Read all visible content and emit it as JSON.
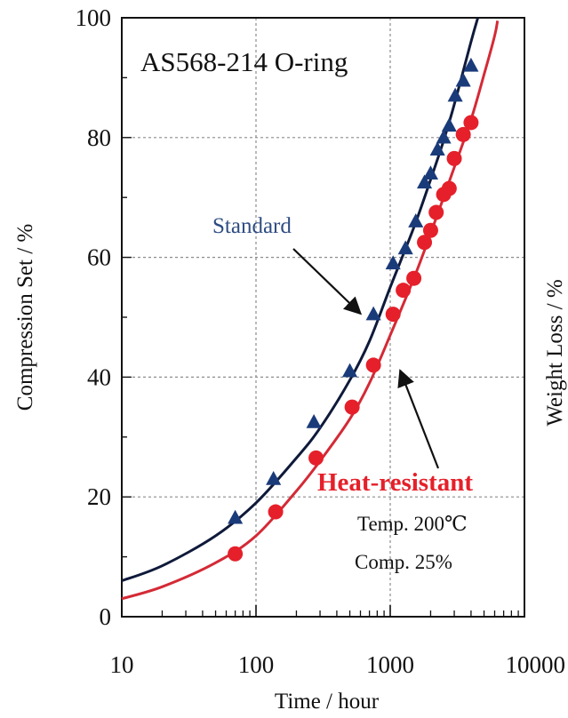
{
  "chart_data": {
    "type": "scatter",
    "title": "AS568-214 O-ring",
    "xlabel": "Time / hour",
    "ylabel": "Compression Set / %",
    "cropped_right_label": "Weight Loss / %",
    "xscale": "log",
    "xlim": [
      10,
      10000
    ],
    "ylim": [
      0,
      100
    ],
    "xticks": [
      10,
      100,
      1000,
      10000
    ],
    "xtick_labels": [
      "10",
      "100",
      "1000",
      "10000"
    ],
    "yticks": [
      0,
      20,
      40,
      60,
      80,
      100
    ],
    "ytick_labels": [
      "0",
      "20",
      "40",
      "60",
      "80",
      "100"
    ],
    "grid": true,
    "series": [
      {
        "name": "Standard",
        "marker": "triangle",
        "color": "#1a3b7a",
        "points": [
          [
            70,
            16.5
          ],
          [
            135,
            23
          ],
          [
            270,
            32.5
          ],
          [
            500,
            41
          ],
          [
            750,
            50.5
          ],
          [
            1050,
            59
          ],
          [
            1300,
            61.5
          ],
          [
            1550,
            66
          ],
          [
            1800,
            72.5
          ],
          [
            2000,
            74
          ],
          [
            2250,
            78
          ],
          [
            2500,
            80
          ],
          [
            2750,
            82
          ],
          [
            3050,
            87
          ],
          [
            3500,
            89.5
          ],
          [
            4000,
            92
          ]
        ],
        "curve": [
          [
            10,
            6
          ],
          [
            20,
            8.5
          ],
          [
            50,
            13.5
          ],
          [
            100,
            19
          ],
          [
            200,
            26.5
          ],
          [
            300,
            31.5
          ],
          [
            500,
            39.5
          ],
          [
            700,
            46
          ],
          [
            1000,
            55
          ],
          [
            1500,
            65
          ],
          [
            2000,
            73
          ],
          [
            2500,
            79.5
          ],
          [
            3000,
            85.5
          ],
          [
            4000,
            96
          ],
          [
            4500,
            100
          ]
        ],
        "curve_color": "#0f1a3a"
      },
      {
        "name": "Heat-resistant",
        "marker": "circle",
        "color": "#e5202a",
        "points": [
          [
            70,
            10.5
          ],
          [
            140,
            17.5
          ],
          [
            280,
            26.5
          ],
          [
            520,
            35
          ],
          [
            750,
            42
          ],
          [
            1050,
            50.5
          ],
          [
            1250,
            54.5
          ],
          [
            1500,
            56.5
          ],
          [
            1800,
            62.5
          ],
          [
            2000,
            64.5
          ],
          [
            2200,
            67.5
          ],
          [
            2500,
            70.5
          ],
          [
            2750,
            71.5
          ],
          [
            3000,
            76.5
          ],
          [
            3500,
            80.5
          ],
          [
            4000,
            82.5
          ]
        ],
        "curve": [
          [
            10,
            3
          ],
          [
            20,
            5
          ],
          [
            50,
            9
          ],
          [
            100,
            13.5
          ],
          [
            200,
            21
          ],
          [
            300,
            26
          ],
          [
            500,
            33
          ],
          [
            700,
            39
          ],
          [
            1000,
            47
          ],
          [
            1500,
            56.5
          ],
          [
            2000,
            64
          ],
          [
            3000,
            75
          ],
          [
            4000,
            83
          ],
          [
            5000,
            90.5
          ],
          [
            6000,
            97
          ],
          [
            6300,
            99.5
          ]
        ],
        "curve_color": "#d42a36"
      }
    ],
    "annotations": {
      "standard_label": "Standard",
      "heat_label": "Heat-resistant",
      "temp_note": "Temp. 200℃",
      "comp_note": "Comp. 25%"
    },
    "standard_arrow_target": [
      700,
      50
    ],
    "heat_arrow_target": [
      1150,
      42
    ]
  },
  "colors": {
    "axis": "#111111",
    "grid": "#8c8c8c",
    "standard_text": "#2e4c82",
    "heat_text": "#e5202a"
  }
}
